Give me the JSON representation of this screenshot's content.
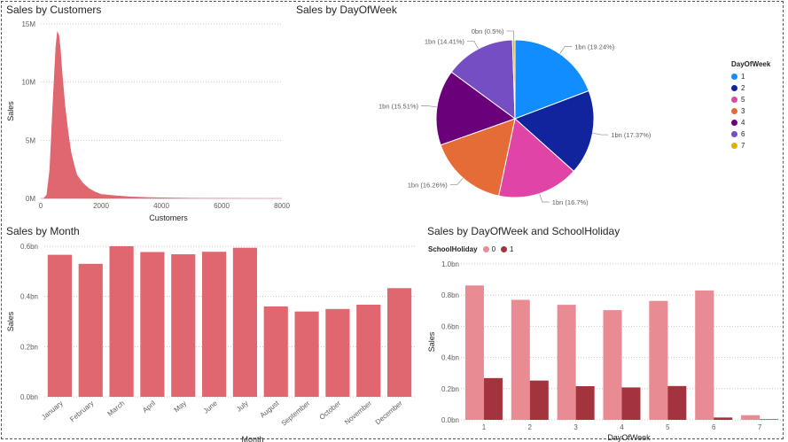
{
  "colors": {
    "main_bar": "#e0666f",
    "holiday0": "#e98b92",
    "holiday1": "#a3333d",
    "grid": "#c8c6c4"
  },
  "visuals": {
    "customers": {
      "title": "Sales by Customers",
      "chart_data": {
        "type": "area",
        "title": "Sales by Customers",
        "xlabel": "Customers",
        "ylabel": "Sales",
        "xlim": [
          0,
          8000
        ],
        "ylim": [
          0,
          15000000
        ],
        "x_ticks": [
          "0",
          "2000",
          "4000",
          "6000",
          "8000"
        ],
        "y_ticks": [
          "0M",
          "5M",
          "10M",
          "15M"
        ],
        "series": [
          {
            "x": [
              0,
              100,
              200,
              300,
              400,
              500,
              550,
              600,
              650,
              700,
              750,
              800,
              900,
              1000,
              1100,
              1200,
              1400,
              1600,
              1800,
              2000,
              2500,
              3000,
              3500,
              4000,
              4500,
              5000,
              5500,
              6000,
              7000,
              8000
            ],
            "values": [
              0,
              0,
              300000,
              2500000,
              8000000,
              13000000,
              14300000,
              14000000,
              12800000,
              11000000,
              9500000,
              8000000,
              5800000,
              4000000,
              2900000,
              2000000,
              1300000,
              850000,
              550000,
              350000,
              220000,
              130000,
              80000,
              50000,
              30000,
              15000,
              10000,
              5000,
              0,
              0
            ]
          }
        ]
      }
    },
    "dayofweek_pie": {
      "title": "Sales by DayOfWeek",
      "legend_title": "DayOfWeek",
      "chart_data": {
        "type": "pie",
        "title": "Sales by DayOfWeek",
        "slices": [
          {
            "label": "1",
            "value": 19.24,
            "text": "1bn (19.24%)",
            "color": "#118dff"
          },
          {
            "label": "2",
            "value": 17.37,
            "text": "1bn (17.37%)",
            "color": "#12239e"
          },
          {
            "label": "5",
            "value": 16.7,
            "text": "1bn (16.7%)",
            "color": "#e044a7"
          },
          {
            "label": "3",
            "value": 16.26,
            "text": "1bn (16.26%)",
            "color": "#e66c37"
          },
          {
            "label": "4",
            "value": 15.51,
            "text": "1bn (15.51%)",
            "color": "#6b007b"
          },
          {
            "label": "6",
            "value": 14.41,
            "text": "1bn (14.41%)",
            "color": "#744ec2"
          },
          {
            "label": "7",
            "value": 0.5,
            "text": "0bn (0.5%)",
            "color": "#d9b300"
          }
        ],
        "legend": [
          "1",
          "2",
          "5",
          "3",
          "4",
          "6",
          "7"
        ]
      }
    },
    "month": {
      "title": "Sales by Month",
      "chart_data": {
        "type": "bar",
        "title": "Sales by Month",
        "xlabel": "Month",
        "ylabel": "Sales",
        "ylim": [
          0,
          0.6
        ],
        "y_ticks": [
          "0.0bn",
          "0.2bn",
          "0.4bn",
          "0.6bn"
        ],
        "categories": [
          "January",
          "February",
          "March",
          "April",
          "May",
          "June",
          "July",
          "August",
          "September",
          "October",
          "November",
          "December"
        ],
        "values": [
          0.566,
          0.53,
          0.6,
          0.577,
          0.568,
          0.578,
          0.594,
          0.36,
          0.34,
          0.35,
          0.367,
          0.433
        ]
      }
    },
    "dow_holiday": {
      "title": "Sales by DayOfWeek and SchoolHoliday",
      "legend_title": "SchoolHoliday",
      "chart_data": {
        "type": "bar",
        "title": "Sales by DayOfWeek and SchoolHoliday",
        "xlabel": "DayOfWeek",
        "ylabel": "Sales",
        "ylim": [
          0,
          1.0
        ],
        "y_ticks": [
          "0.0bn",
          "0.2bn",
          "0.4bn",
          "0.6bn",
          "0.8bn",
          "1.0bn"
        ],
        "categories": [
          "1",
          "2",
          "3",
          "4",
          "5",
          "6",
          "7"
        ],
        "series": [
          {
            "name": "0",
            "values": [
              0.862,
              0.77,
              0.738,
              0.704,
              0.763,
              0.83,
              0.03
            ]
          },
          {
            "name": "1",
            "values": [
              0.268,
              0.252,
              0.216,
              0.208,
              0.217,
              0.015,
              0.004
            ]
          }
        ]
      }
    }
  }
}
